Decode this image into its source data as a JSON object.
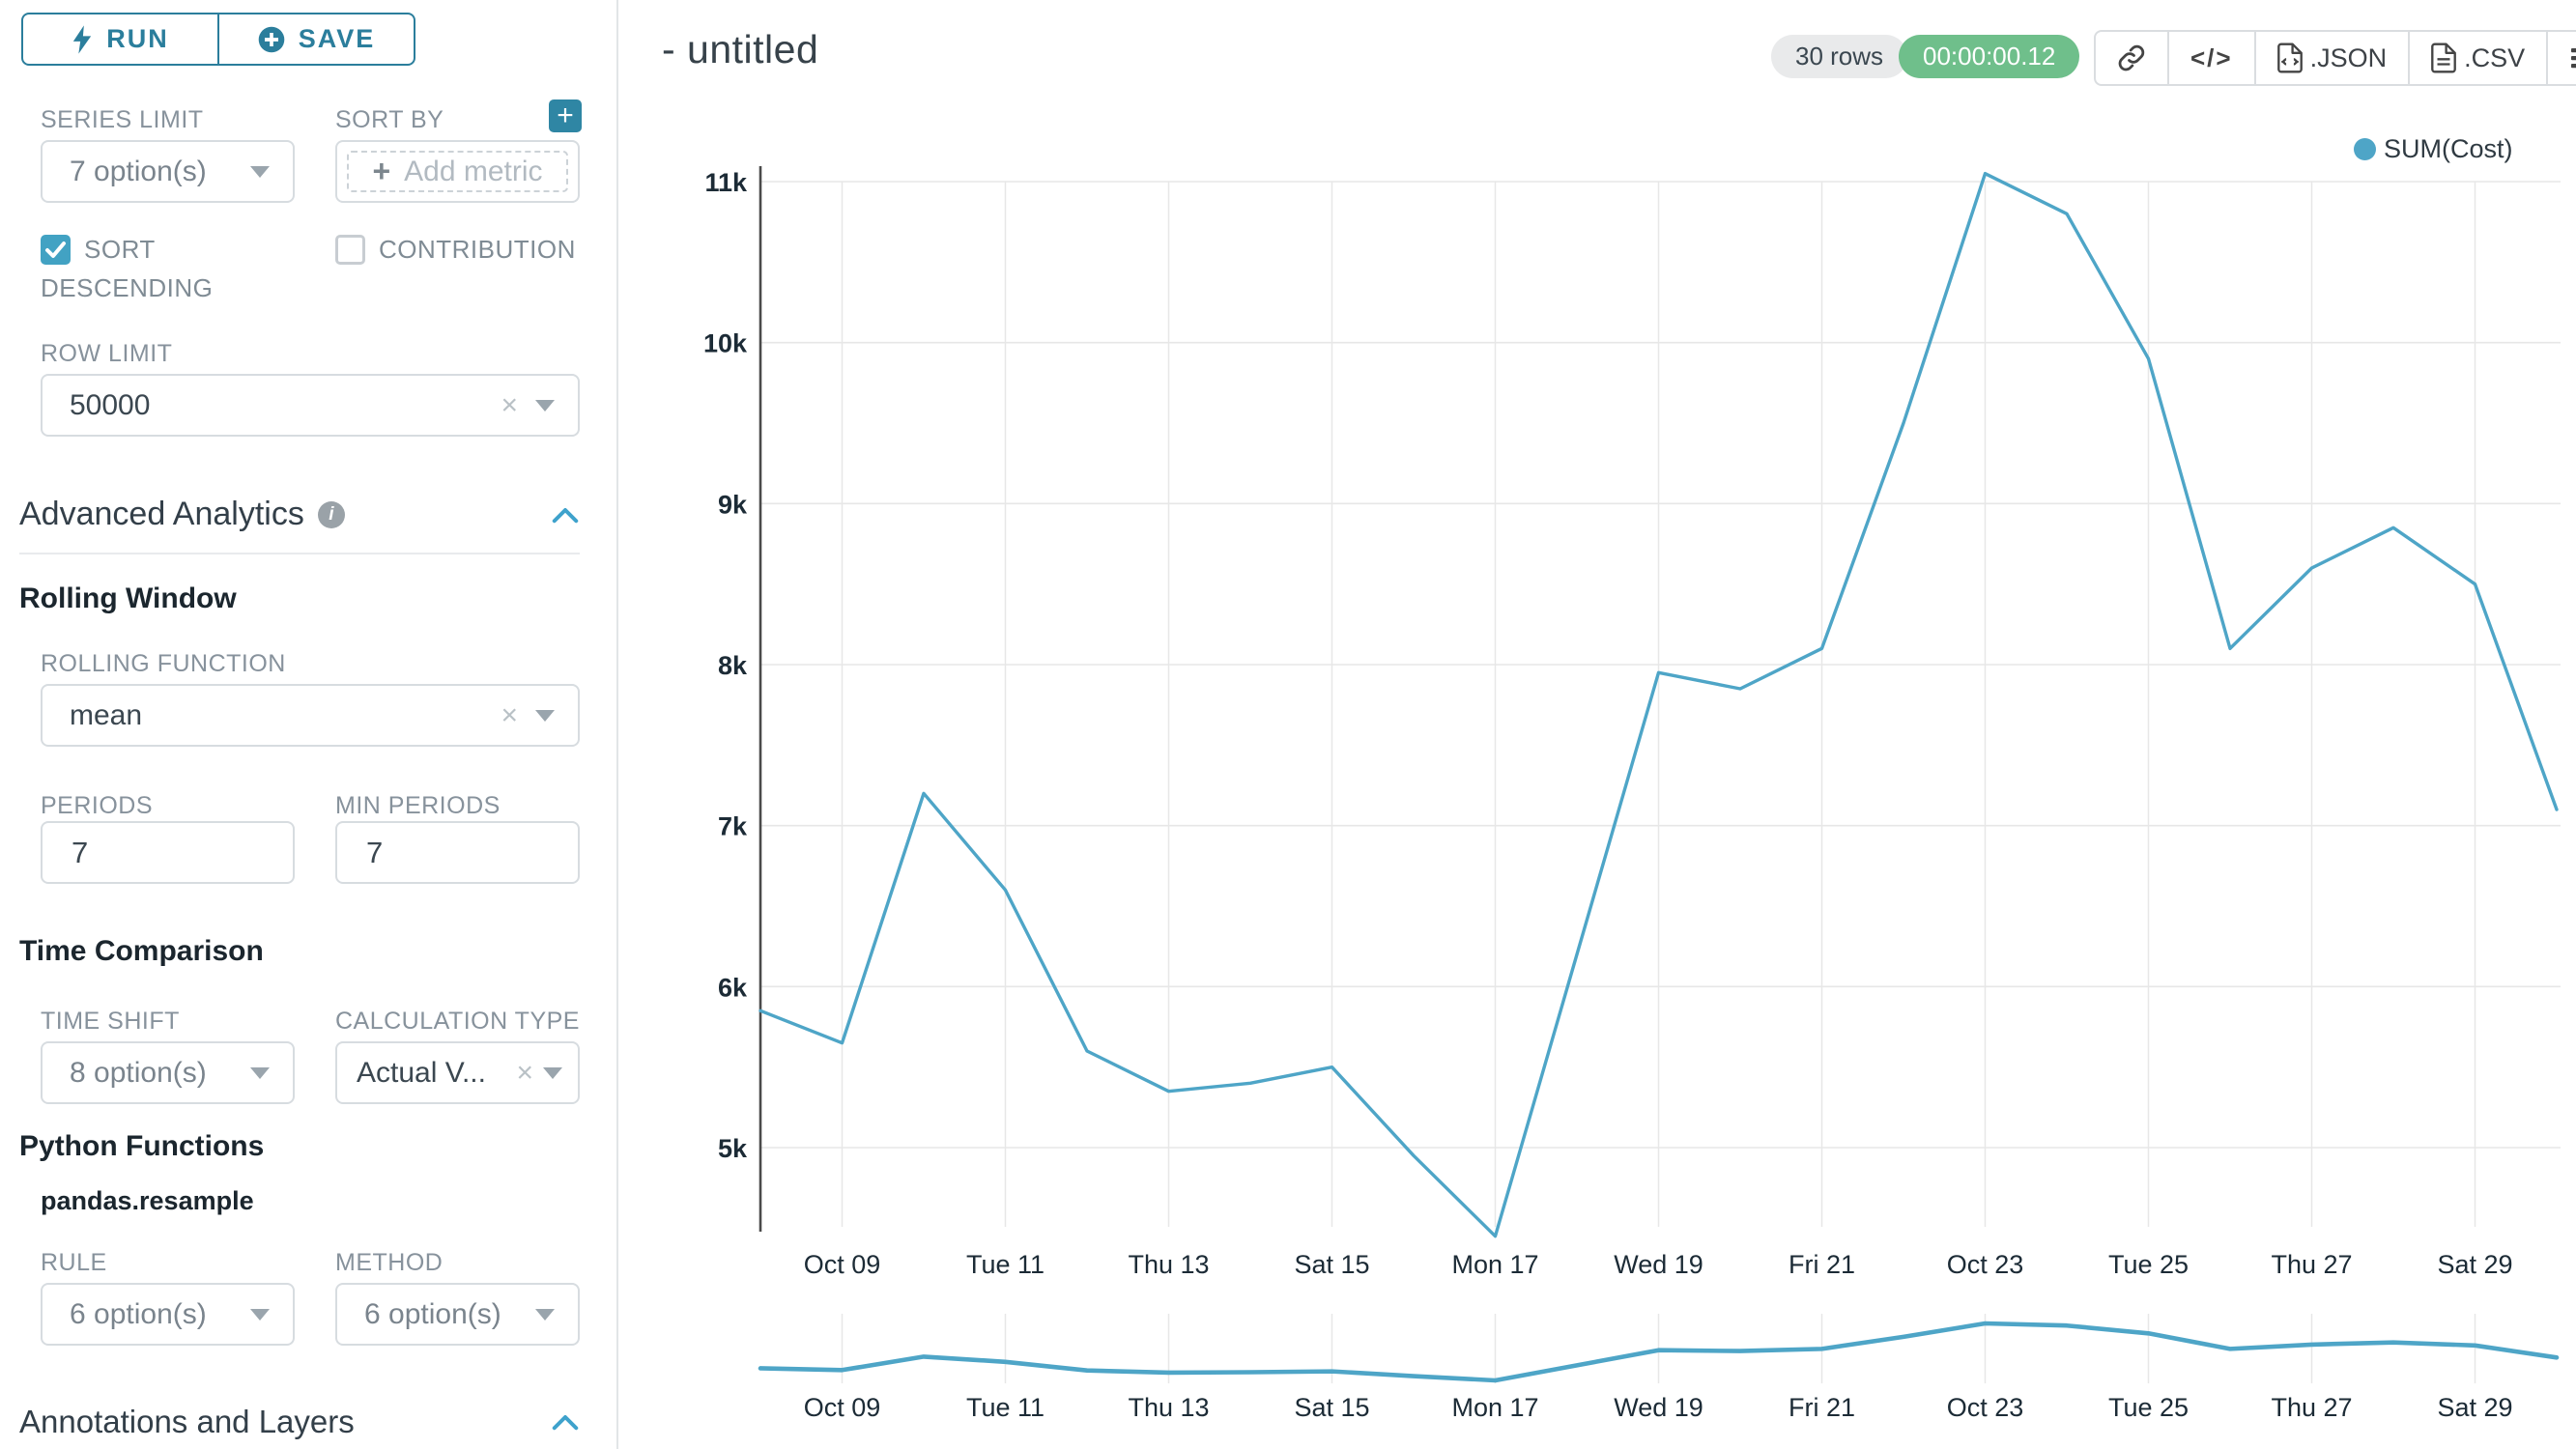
{
  "sidebar": {
    "run_label": "RUN",
    "save_label": "SAVE",
    "series_limit": {
      "label": "SERIES LIMIT",
      "value": "7 option(s)"
    },
    "sort_by": {
      "label": "SORT BY",
      "placeholder": "Add metric"
    },
    "sort_descending_label": "SORT DESCENDING",
    "contribution_label": "CONTRIBUTION",
    "row_limit": {
      "label": "ROW LIMIT",
      "value": "50000"
    },
    "advanced_analytics_title": "Advanced Analytics",
    "rolling_window": {
      "title": "Rolling Window",
      "rolling_function": {
        "label": "ROLLING FUNCTION",
        "value": "mean"
      },
      "periods": {
        "label": "PERIODS",
        "value": "7"
      },
      "min_periods": {
        "label": "MIN PERIODS",
        "value": "7"
      }
    },
    "time_comparison": {
      "title": "Time Comparison",
      "time_shift": {
        "label": "TIME SHIFT",
        "value": "8 option(s)"
      },
      "calculation_type": {
        "label": "CALCULATION TYPE",
        "value": "Actual V..."
      }
    },
    "python_functions": {
      "title": "Python Functions",
      "subtitle": "pandas.resample",
      "rule": {
        "label": "RULE",
        "value": "6 option(s)"
      },
      "method": {
        "label": "METHOD",
        "value": "6 option(s)"
      }
    },
    "annotations_title": "Annotations and Layers"
  },
  "header": {
    "title": "- untitled",
    "rows_badge": "30 rows",
    "timer_badge": "00:00:00.12",
    "json_label": ".JSON",
    "csv_label": ".CSV"
  },
  "icons": {
    "plus": "+",
    "close": "×",
    "code": "</>"
  },
  "legend": {
    "label": "SUM(Cost)"
  },
  "colors": {
    "line": "#4ea5c7",
    "accent_teal": "#2f86a4",
    "checkbox_blue": "#42a2c3",
    "timer_green": "#6fbf8b",
    "axis": "#4a4a4a",
    "grid": "#e7e7e7",
    "tick_text": "#1c2b36"
  },
  "chart_data": {
    "type": "line",
    "title": "- untitled",
    "x": [
      "Oct 08",
      "Oct 09",
      "Oct 10",
      "Oct 11",
      "Oct 12",
      "Oct 13",
      "Oct 14",
      "Oct 15",
      "Oct 16",
      "Oct 17",
      "Oct 18",
      "Oct 19",
      "Oct 20",
      "Oct 21",
      "Oct 22",
      "Oct 23",
      "Oct 24",
      "Oct 25",
      "Oct 26",
      "Oct 27",
      "Oct 28",
      "Oct 29",
      "Oct 30"
    ],
    "series": [
      {
        "name": "SUM(Cost)",
        "values": [
          5850,
          5650,
          7200,
          6600,
          5600,
          5350,
          5400,
          5500,
          4950,
          4450,
          6200,
          7950,
          7850,
          8100,
          9500,
          11050,
          10800,
          9900,
          8100,
          8600,
          8850,
          8500,
          7100
        ]
      }
    ],
    "x_tick_labels": [
      "Oct 09",
      "Tue 11",
      "Thu 13",
      "Sat 15",
      "Mon 17",
      "Wed 19",
      "Fri 21",
      "Oct 23",
      "Tue 25",
      "Thu 27",
      "Sat 29"
    ],
    "y_tick_labels": [
      "5k",
      "6k",
      "7k",
      "8k",
      "9k",
      "10k",
      "11k"
    ],
    "y_tick_values": [
      5000,
      6000,
      7000,
      8000,
      9000,
      10000,
      11000
    ],
    "ylim": [
      4300,
      11200
    ],
    "grid": true,
    "legend_position": "top-right",
    "has_preview_strip": true
  }
}
